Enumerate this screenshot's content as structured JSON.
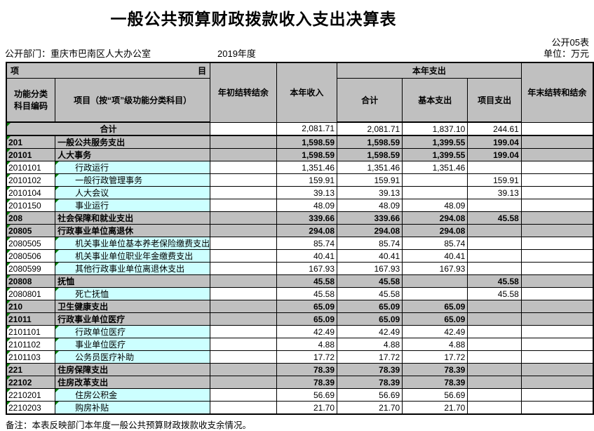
{
  "page": {
    "title": "一般公共预算财政拨款收入支出决算表",
    "table_code": "公开05表",
    "unit_label": "单位：万元",
    "department_label": "公开部门：重庆市巴南区人大办公室",
    "year_label": "2019年度",
    "note": "备注：本表反映部门本年度一般公共预算财政拨款收支余情况。"
  },
  "header": {
    "item_left": "项",
    "item_right": "目",
    "col_code": "功能分类科目编码",
    "col_name": "项目（按“项”级功能分类科目）",
    "col_begin_balance": "年初结转结余",
    "col_income": "本年收入",
    "col_expenditure_group": "本年支出",
    "col_exp_total": "合计",
    "col_exp_basic": "基本支出",
    "col_exp_project": "项目支出",
    "col_end_balance": "年末结转和结余"
  },
  "colors": {
    "section_fill": "#c0c0c0",
    "detail_name_fill": "#ccffff",
    "flag_triangle": "#008000"
  },
  "rows": [
    {
      "type": "total",
      "code": "",
      "name": "合计",
      "begin": "",
      "income": "2,081.71",
      "total": "2,081.71",
      "basic": "1,837.10",
      "project": "244.61",
      "end": ""
    },
    {
      "type": "section",
      "code": "201",
      "name": "一般公共服务支出",
      "begin": "",
      "income": "1,598.59",
      "total": "1,598.59",
      "basic": "1,399.55",
      "project": "199.04",
      "end": ""
    },
    {
      "type": "section",
      "code": "20101",
      "name": "人大事务",
      "begin": "",
      "income": "1,598.59",
      "total": "1,598.59",
      "basic": "1,399.55",
      "project": "199.04",
      "end": ""
    },
    {
      "type": "detail",
      "code": "2010101",
      "name": "行政运行",
      "begin": "",
      "income": "1,351.46",
      "total": "1,351.46",
      "basic": "1,351.46",
      "project": "",
      "end": ""
    },
    {
      "type": "detail",
      "code": "2010102",
      "name": "一般行政管理事务",
      "begin": "",
      "income": "159.91",
      "total": "159.91",
      "basic": "",
      "project": "159.91",
      "end": ""
    },
    {
      "type": "detail",
      "code": "2010104",
      "name": "人大会议",
      "begin": "",
      "income": "39.13",
      "total": "39.13",
      "basic": "",
      "project": "39.13",
      "end": ""
    },
    {
      "type": "detail",
      "code": "2010150",
      "name": "事业运行",
      "begin": "",
      "income": "48.09",
      "total": "48.09",
      "basic": "48.09",
      "project": "",
      "end": ""
    },
    {
      "type": "section",
      "code": "208",
      "name": "社会保障和就业支出",
      "begin": "",
      "income": "339.66",
      "total": "339.66",
      "basic": "294.08",
      "project": "45.58",
      "end": ""
    },
    {
      "type": "section",
      "code": "20805",
      "name": "行政事业单位离退休",
      "begin": "",
      "income": "294.08",
      "total": "294.08",
      "basic": "294.08",
      "project": "",
      "end": ""
    },
    {
      "type": "detail",
      "code": "2080505",
      "name": "机关事业单位基本养老保险缴费支出",
      "begin": "",
      "income": "85.74",
      "total": "85.74",
      "basic": "85.74",
      "project": "",
      "end": ""
    },
    {
      "type": "detail",
      "code": "2080506",
      "name": "机关事业单位职业年金缴费支出",
      "begin": "",
      "income": "40.41",
      "total": "40.41",
      "basic": "40.41",
      "project": "",
      "end": ""
    },
    {
      "type": "detail",
      "code": "2080599",
      "name": "其他行政事业单位离退休支出",
      "begin": "",
      "income": "167.93",
      "total": "167.93",
      "basic": "167.93",
      "project": "",
      "end": ""
    },
    {
      "type": "section",
      "code": "20808",
      "name": "抚恤",
      "begin": "",
      "income": "45.58",
      "total": "45.58",
      "basic": "",
      "project": "45.58",
      "end": ""
    },
    {
      "type": "detail",
      "code": "2080801",
      "name": "死亡抚恤",
      "begin": "",
      "income": "45.58",
      "total": "45.58",
      "basic": "",
      "project": "45.58",
      "end": ""
    },
    {
      "type": "section",
      "code": "210",
      "name": "卫生健康支出",
      "begin": "",
      "income": "65.09",
      "total": "65.09",
      "basic": "65.09",
      "project": "",
      "end": ""
    },
    {
      "type": "section",
      "code": "21011",
      "name": "行政事业单位医疗",
      "begin": "",
      "income": "65.09",
      "total": "65.09",
      "basic": "65.09",
      "project": "",
      "end": ""
    },
    {
      "type": "detail",
      "code": "2101101",
      "name": "行政单位医疗",
      "begin": "",
      "income": "42.49",
      "total": "42.49",
      "basic": "42.49",
      "project": "",
      "end": ""
    },
    {
      "type": "detail",
      "code": "2101102",
      "name": "事业单位医疗",
      "begin": "",
      "income": "4.88",
      "total": "4.88",
      "basic": "4.88",
      "project": "",
      "end": ""
    },
    {
      "type": "detail",
      "code": "2101103",
      "name": "公务员医疗补助",
      "begin": "",
      "income": "17.72",
      "total": "17.72",
      "basic": "17.72",
      "project": "",
      "end": ""
    },
    {
      "type": "section",
      "code": "221",
      "name": "住房保障支出",
      "begin": "",
      "income": "78.39",
      "total": "78.39",
      "basic": "78.39",
      "project": "",
      "end": ""
    },
    {
      "type": "section",
      "code": "22102",
      "name": "住房改革支出",
      "begin": "",
      "income": "78.39",
      "total": "78.39",
      "basic": "78.39",
      "project": "",
      "end": ""
    },
    {
      "type": "detail",
      "code": "2210201",
      "name": "住房公积金",
      "begin": "",
      "income": "56.69",
      "total": "56.69",
      "basic": "56.69",
      "project": "",
      "end": ""
    },
    {
      "type": "detail",
      "code": "2210203",
      "name": "购房补贴",
      "begin": "",
      "income": "21.70",
      "total": "21.70",
      "basic": "21.70",
      "project": "",
      "end": ""
    }
  ]
}
